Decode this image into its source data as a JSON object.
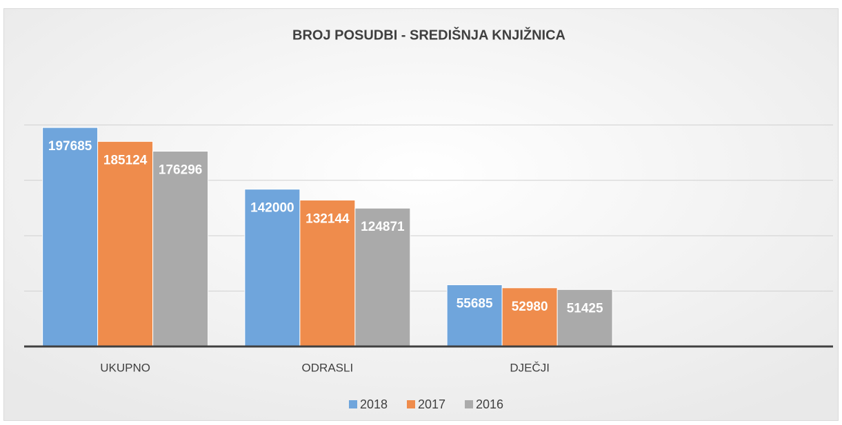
{
  "chart_data": {
    "type": "bar",
    "title": "BROJ POSUDBI - SREDIŠNJA KNJIŽNICA",
    "categories": [
      "UKUPNO",
      "ODRASLI",
      "DJEČJI",
      null
    ],
    "series": [
      {
        "name": "2018",
        "color": "#6fa5dc",
        "values": [
          197685,
          142000,
          55685,
          null
        ]
      },
      {
        "name": "2017",
        "color": "#ef8c4c",
        "values": [
          185124,
          132144,
          52980,
          null
        ]
      },
      {
        "name": "2016",
        "color": "#aaaaaa",
        "values": [
          176296,
          124871,
          51425,
          null
        ]
      }
    ],
    "ylim": [
      0,
      250000
    ],
    "yticks": [
      0,
      50000,
      100000,
      150000,
      200000
    ],
    "grid": true,
    "legend": "bottom"
  }
}
